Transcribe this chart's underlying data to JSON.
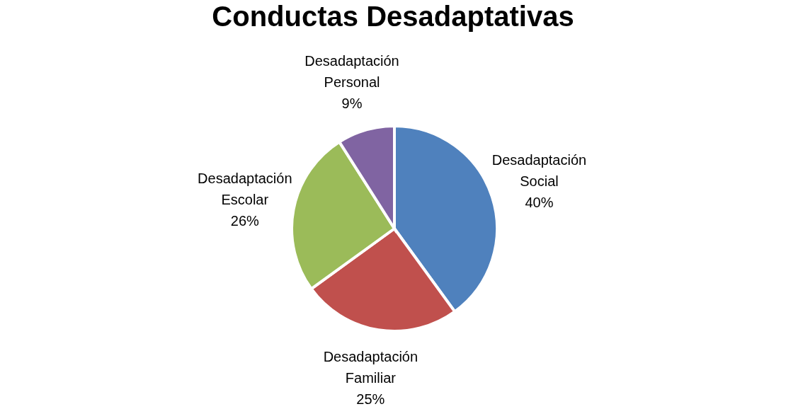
{
  "chart_data": {
    "type": "pie",
    "title": "Conductas Desadaptativas",
    "categories": [
      "Desadaptación Social",
      "Desadaptación Familiar",
      "Desadaptación Escolar",
      "Desadaptación Personal"
    ],
    "values": [
      40,
      25,
      26,
      9
    ],
    "value_labels": [
      "40%",
      "25%",
      "26%",
      "9%"
    ],
    "colors": [
      "#4f81bd",
      "#c0504d",
      "#9bbb59",
      "#8064a2"
    ]
  }
}
